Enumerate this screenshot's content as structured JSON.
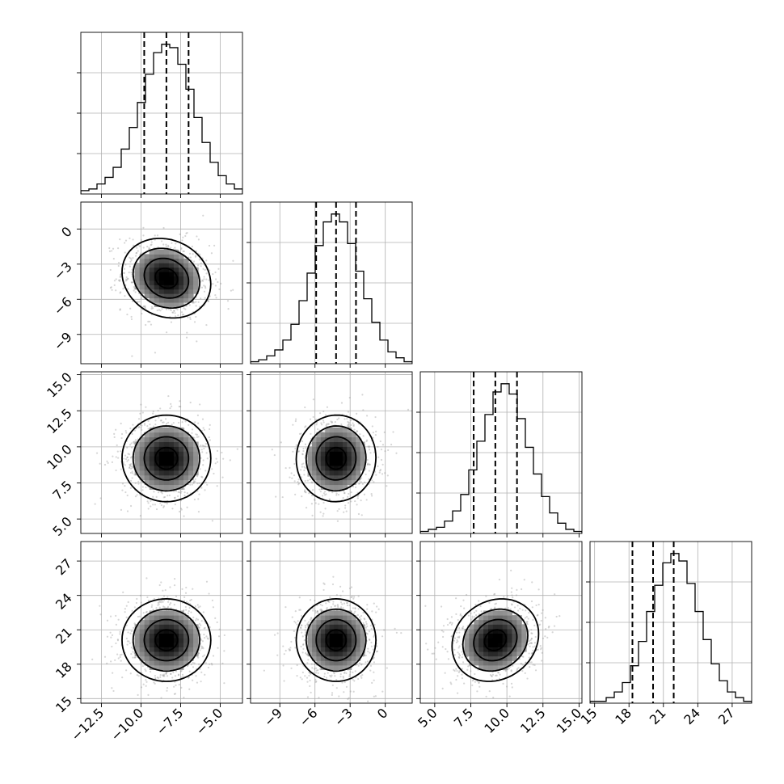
{
  "chart_data": {
    "type": "corner",
    "title": "",
    "grid": true,
    "quantiles": [
      0.16,
      0.5,
      0.84
    ],
    "params": [
      {
        "name": "",
        "mean": -8.4,
        "sd": 1.4,
        "lim": [
          -13.8,
          -3.6
        ],
        "ticks": [
          -12.5,
          -10.0,
          -7.5,
          -5.0
        ],
        "tick_labels": [
          "−12.5",
          "−10.0",
          "−7.5",
          "−5.0"
        ],
        "quantile_values": [
          -9.8,
          -8.4,
          -7.0
        ]
      },
      {
        "name": "",
        "mean": -4.2,
        "sd": 1.7,
        "lim": [
          -11.5,
          2.3
        ],
        "ticks": [
          -9,
          -6,
          -3,
          0
        ],
        "tick_labels": [
          "−9",
          "−6",
          "−3",
          "0"
        ],
        "quantile_values": [
          -5.9,
          -4.2,
          -2.5
        ]
      },
      {
        "name": "",
        "mean": 9.2,
        "sd": 1.5,
        "lim": [
          4.0,
          15.2
        ],
        "ticks": [
          5.0,
          7.5,
          10.0,
          12.5,
          15.0
        ],
        "tick_labels": [
          "5.0",
          "7.5",
          "10.0",
          "12.5",
          "15.0"
        ],
        "quantile_values": [
          7.7,
          9.2,
          10.7
        ]
      },
      {
        "name": "",
        "mean": 20.1,
        "sd": 1.8,
        "lim": [
          14.6,
          28.7
        ],
        "ticks": [
          15,
          18,
          21,
          24,
          27
        ],
        "tick_labels": [
          "15",
          "18",
          "21",
          "24",
          "27"
        ],
        "quantile_values": [
          18.3,
          20.1,
          21.9
        ]
      }
    ],
    "histogram_counts": [
      [
        2,
        3,
        6,
        10,
        16,
        27,
        40,
        55,
        72,
        85,
        90,
        88,
        78,
        63,
        46,
        31,
        19,
        11,
        6,
        3
      ],
      [
        1,
        2,
        4,
        7,
        12,
        20,
        32,
        46,
        60,
        72,
        76,
        72,
        61,
        47,
        33,
        21,
        12,
        6,
        3,
        1
      ],
      [
        1,
        2,
        3,
        6,
        11,
        19,
        31,
        45,
        58,
        69,
        73,
        68,
        56,
        42,
        29,
        18,
        10,
        5,
        2,
        1
      ],
      [
        1,
        1,
        3,
        6,
        11,
        20,
        33,
        49,
        63,
        75,
        80,
        76,
        64,
        49,
        34,
        21,
        12,
        6,
        3,
        1
      ]
    ],
    "correlations": [
      {
        "x": 0,
        "y": 1,
        "r": -0.15
      },
      {
        "x": 0,
        "y": 2,
        "r": 0.0
      },
      {
        "x": 1,
        "y": 2,
        "r": 0.02
      },
      {
        "x": 0,
        "y": 3,
        "r": 0.0
      },
      {
        "x": 1,
        "y": 3,
        "r": 0.0
      },
      {
        "x": 2,
        "y": 3,
        "r": 0.15
      }
    ],
    "contour_levels_sigma": [
      0.5,
      1.0,
      1.5,
      2.0
    ],
    "colors": {
      "line": "#000000",
      "scatter": "#8a8a8a",
      "grid": "#b0b0b0"
    }
  }
}
